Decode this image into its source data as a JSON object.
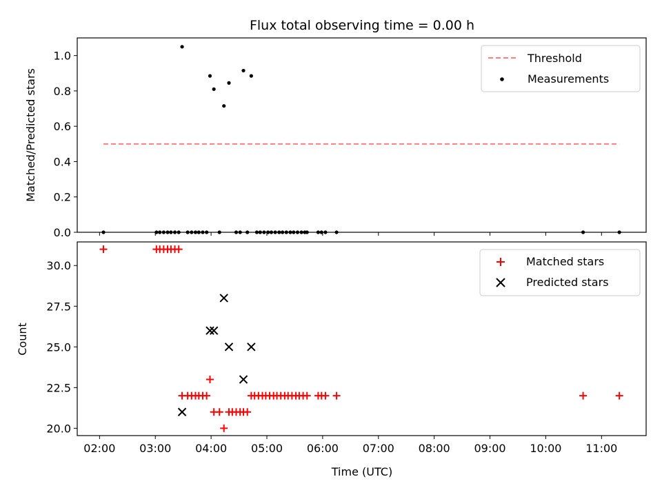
{
  "figure": {
    "title": "Flux total observing time = 0.00 h",
    "xlabel": "Time (UTC)"
  },
  "chart_data": [
    {
      "type": "scatter",
      "panel": "top",
      "title": "Flux total observing time = 0.00 h",
      "xlabel": "",
      "ylabel": "Matched/Predicted stars",
      "xlim": [
        1.6,
        11.8
      ],
      "ylim": [
        0.0,
        1.1
      ],
      "yticks": [
        0.0,
        0.2,
        0.4,
        0.6,
        0.8,
        1.0
      ],
      "yticklabels": [
        "0.0",
        "0.2",
        "0.4",
        "0.6",
        "0.8",
        "1.0"
      ],
      "legend": "top-right",
      "grid": false,
      "series": [
        {
          "name": "Threshold",
          "kind": "dashed-line",
          "color": "#ff7f7f",
          "x": [
            2.07,
            11.32
          ],
          "y": [
            0.5,
            0.5
          ]
        },
        {
          "name": "Measurements",
          "kind": "points",
          "color": "#000000",
          "x": [
            2.07,
            3.02,
            3.08,
            3.15,
            3.22,
            3.28,
            3.35,
            3.42,
            3.48,
            3.58,
            3.65,
            3.72,
            3.78,
            3.85,
            3.92,
            3.98,
            4.05,
            4.15,
            4.23,
            4.32,
            4.45,
            4.52,
            4.58,
            4.65,
            4.72,
            4.82,
            4.88,
            4.95,
            5.02,
            5.08,
            5.15,
            5.22,
            5.28,
            5.35,
            5.42,
            5.48,
            5.55,
            5.62,
            5.68,
            5.72,
            5.92,
            5.98,
            6.05,
            6.25,
            10.67,
            11.32
          ],
          "y": [
            0.0,
            0.0,
            0.0,
            0.0,
            0.0,
            0.0,
            0.0,
            0.0,
            1.05,
            0.0,
            0.0,
            0.0,
            0.0,
            0.0,
            0.0,
            0.885,
            0.81,
            0.0,
            0.715,
            0.845,
            0.0,
            0.0,
            0.915,
            0.0,
            0.885,
            0.0,
            0.0,
            0.0,
            0.0,
            0.0,
            0.0,
            0.0,
            0.0,
            0.0,
            0.0,
            0.0,
            0.0,
            0.0,
            0.0,
            0.0,
            0.0,
            0.0,
            0.0,
            0.0,
            0.0,
            0.0
          ]
        }
      ]
    },
    {
      "type": "scatter",
      "panel": "bottom",
      "xlabel": "Time (UTC)",
      "ylabel": "Count",
      "xlim": [
        1.6,
        11.8
      ],
      "ylim": [
        19.55,
        31.45
      ],
      "xticks": [
        2,
        3,
        4,
        5,
        6,
        7,
        8,
        9,
        10,
        11
      ],
      "xticklabels": [
        "02:00",
        "03:00",
        "04:00",
        "05:00",
        "06:00",
        "07:00",
        "08:00",
        "09:00",
        "10:00",
        "11:00"
      ],
      "yticks": [
        20.0,
        22.5,
        25.0,
        27.5,
        30.0
      ],
      "yticklabels": [
        "20.0",
        "22.5",
        "25.0",
        "27.5",
        "30.0"
      ],
      "legend": "top-right",
      "grid": false,
      "series": [
        {
          "name": "Matched stars",
          "marker": "plus",
          "color": "#ff0000",
          "x": [
            2.07,
            3.02,
            3.08,
            3.15,
            3.22,
            3.28,
            3.35,
            3.42,
            3.48,
            3.58,
            3.65,
            3.72,
            3.78,
            3.85,
            3.92,
            3.98,
            4.05,
            4.15,
            4.23,
            4.32,
            4.38,
            4.45,
            4.52,
            4.58,
            4.65,
            4.72,
            4.78,
            4.85,
            4.92,
            4.98,
            5.05,
            5.12,
            5.18,
            5.25,
            5.32,
            5.38,
            5.45,
            5.52,
            5.58,
            5.65,
            5.72,
            5.92,
            5.98,
            6.05,
            6.25,
            10.67,
            11.32
          ],
          "y": [
            31,
            31,
            31,
            31,
            31,
            31,
            31,
            31,
            22,
            22,
            22,
            22,
            22,
            22,
            22,
            23,
            21,
            21,
            20,
            21,
            21,
            21,
            21,
            21,
            21,
            22,
            22,
            22,
            22,
            22,
            22,
            22,
            22,
            22,
            22,
            22,
            22,
            22,
            22,
            22,
            22,
            22,
            22,
            22,
            22,
            22,
            22
          ]
        },
        {
          "name": "Predicted stars",
          "marker": "x",
          "color": "#000000",
          "x": [
            3.48,
            3.98,
            4.05,
            4.23,
            4.32,
            4.58,
            4.72
          ],
          "y": [
            21,
            26,
            26,
            28,
            25,
            23,
            25
          ]
        }
      ]
    }
  ]
}
